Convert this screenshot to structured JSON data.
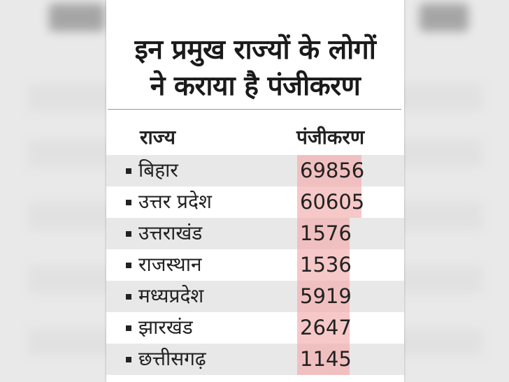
{
  "headline": {
    "line1": "इन प्रमुख राज्यों के लोगों",
    "line2": "ने कराया है पंजीकरण"
  },
  "columns": {
    "state": "राज्य",
    "registration": "पंजीकरण"
  },
  "rows": [
    {
      "state": "बिहार",
      "registration": "69856"
    },
    {
      "state": "उत्तर प्रदेश",
      "registration": "60605"
    },
    {
      "state": "उत्तराखंड",
      "registration": "1576"
    },
    {
      "state": "राजस्थान",
      "registration": "1536"
    },
    {
      "state": "मध्यप्रदेश",
      "registration": "5919"
    },
    {
      "state": "झारखंड",
      "registration": "2647"
    },
    {
      "state": "छत्तीसगढ़",
      "registration": "1145"
    }
  ],
  "colors": {
    "highlight": "#f6c8c8",
    "row_shade": "#e8e8e8",
    "text": "#222222"
  }
}
